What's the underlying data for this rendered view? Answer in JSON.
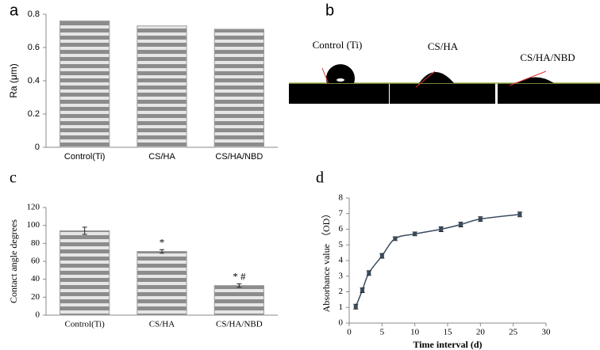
{
  "chart_data": [
    {
      "type": "bar",
      "panel": "a",
      "ylabel": "Ra (μm)",
      "categories": [
        "Control(Ti)",
        "CS/HA",
        "CS/HA/NBD"
      ],
      "values": [
        0.76,
        0.73,
        0.71
      ],
      "ylim": [
        0,
        0.8
      ],
      "yticks": [
        0,
        0.2,
        0.4,
        0.6,
        0.8
      ],
      "color": "#9c9c9c"
    },
    {
      "type": "bar",
      "panel": "c",
      "ylabel": "Contact angle degrees",
      "categories": [
        "Control(Ti)",
        "CS/HA",
        "CS/HA/NBD"
      ],
      "values": [
        94,
        71,
        33
      ],
      "errors": [
        4,
        2,
        2
      ],
      "annotations": [
        null,
        "*",
        "* #"
      ],
      "ylim": [
        0,
        120
      ],
      "yticks": [
        0,
        20,
        40,
        60,
        80,
        100,
        120
      ],
      "color": "#9c9c9c"
    },
    {
      "type": "line",
      "panel": "d",
      "xlabel": "Time interval (d)",
      "ylabel": "Absorbance value （OD）",
      "x": [
        1,
        2,
        3,
        5,
        7,
        10,
        14,
        17,
        20,
        26
      ],
      "values": [
        1.05,
        2.1,
        3.2,
        4.3,
        5.4,
        5.7,
        6.0,
        6.3,
        6.65,
        6.95
      ],
      "errors": [
        0.15,
        0.15,
        0.15,
        0.15,
        0.12,
        0.12,
        0.15,
        0.15,
        0.15,
        0.15
      ],
      "xlim": [
        0,
        30
      ],
      "xticks": [
        0,
        5,
        10,
        15,
        20,
        25,
        30
      ],
      "ylim": [
        0,
        8
      ],
      "yticks": [
        0,
        1,
        2,
        3,
        4,
        5,
        6,
        7,
        8
      ],
      "color": "#3a4a5c"
    }
  ],
  "panel_b": {
    "label": "b",
    "captions": [
      "Control (Ti)",
      "CS/HA",
      "CS/HA/NBD"
    ]
  }
}
